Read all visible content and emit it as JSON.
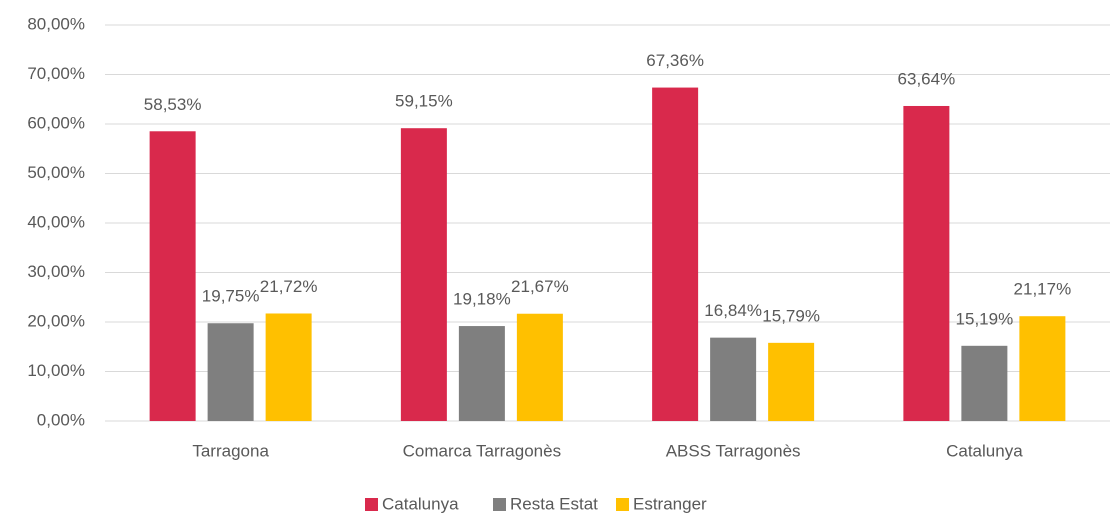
{
  "chart_data": {
    "type": "bar",
    "categories": [
      "Tarragona",
      "Comarca Tarragonès",
      "ABSS Tarragonès",
      "Catalunya"
    ],
    "series": [
      {
        "name": "Catalunya",
        "color": "#d9294c",
        "values": [
          58.53,
          59.15,
          67.36,
          63.64
        ],
        "value_labels": [
          "58,53%",
          "59,15%",
          "67,36%",
          "63,64%"
        ]
      },
      {
        "name": "Resta Estat",
        "color": "#7f7f7f",
        "values": [
          19.75,
          19.18,
          16.84,
          15.19
        ],
        "value_labels": [
          "19,75%",
          "19,18%",
          "16,84%",
          "15,19%"
        ]
      },
      {
        "name": "Estranger",
        "color": "#ffc000",
        "values": [
          21.72,
          21.67,
          15.79,
          21.17
        ],
        "value_labels": [
          "21,72%",
          "21,67%",
          "15,79%",
          "21,17%"
        ]
      }
    ],
    "ylim": [
      0,
      80
    ],
    "yticks": [
      {
        "value": 0,
        "label": "0,00%"
      },
      {
        "value": 10,
        "label": "10,00%"
      },
      {
        "value": 20,
        "label": "20,00%"
      },
      {
        "value": 30,
        "label": "30,00%"
      },
      {
        "value": 40,
        "label": "40,00%"
      },
      {
        "value": 50,
        "label": "50,00%"
      },
      {
        "value": 60,
        "label": "60,00%"
      },
      {
        "value": 70,
        "label": "70,00%"
      },
      {
        "value": 80,
        "label": "80,00%"
      }
    ],
    "grid": true,
    "legend": "bottom"
  }
}
